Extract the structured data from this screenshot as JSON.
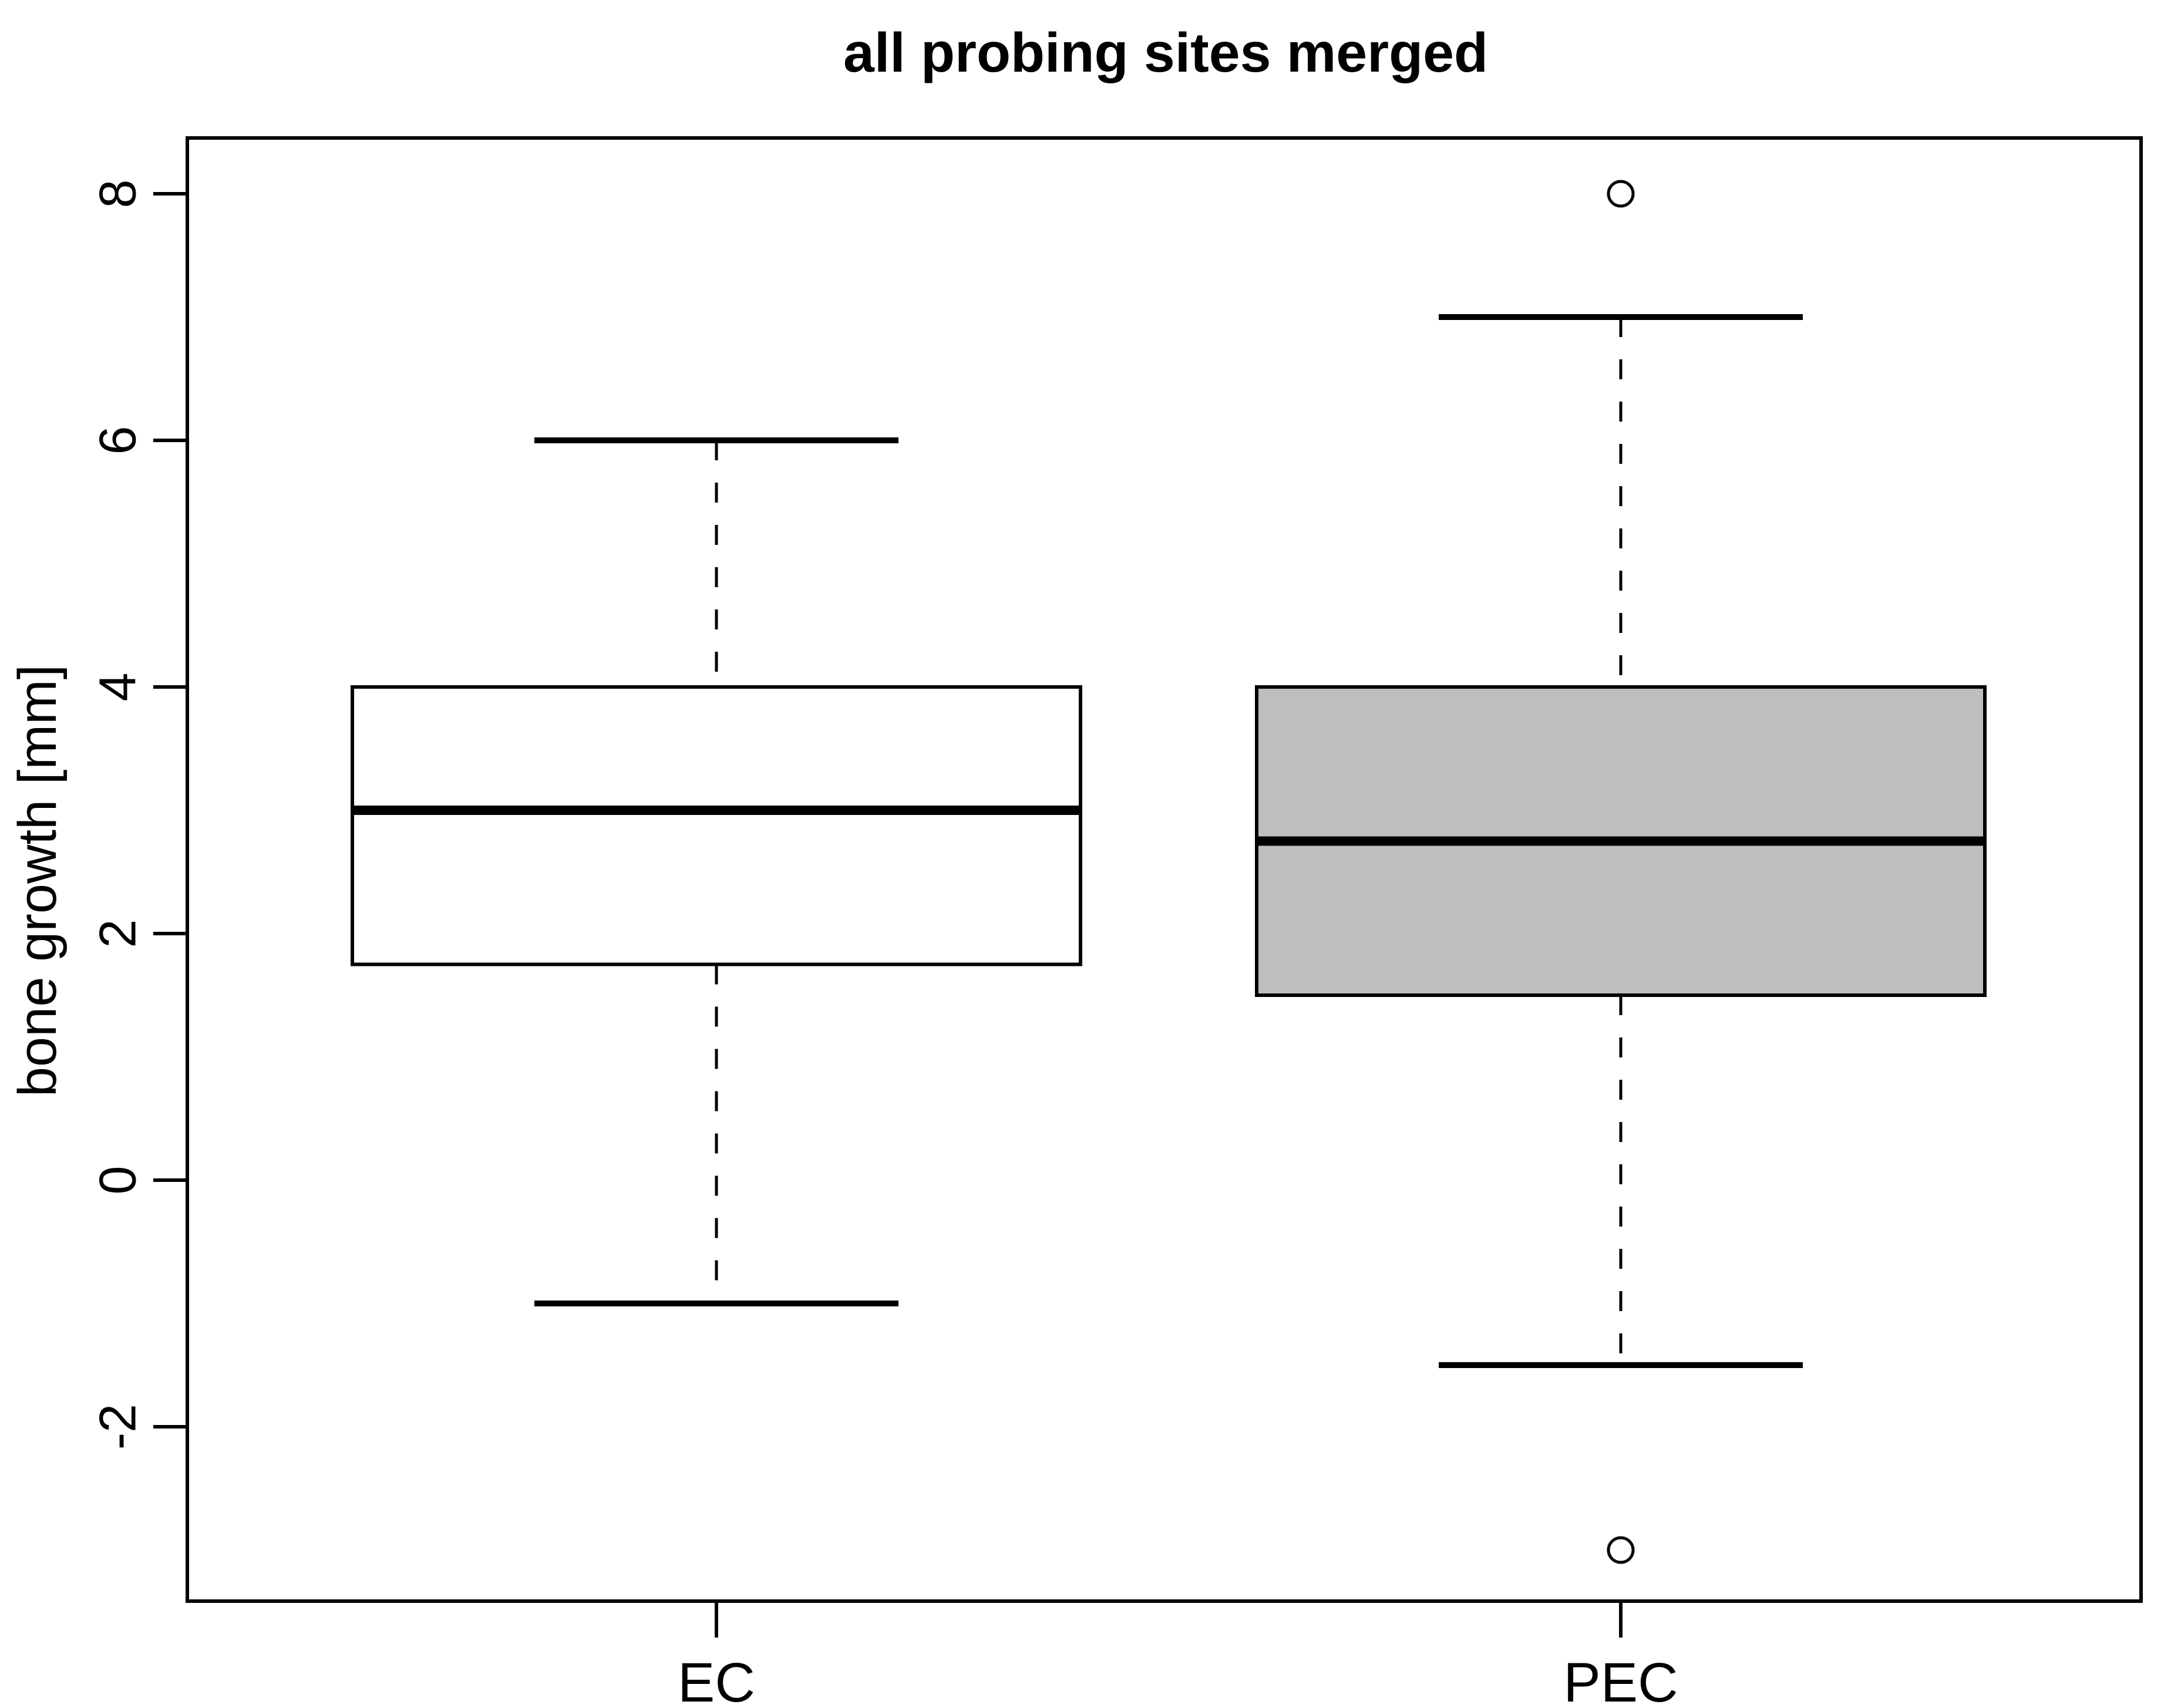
{
  "title": "all probing sites merged",
  "y_axis": {
    "label": "bone growth [mm]",
    "tick_labels": [
      "-2",
      "0",
      "2",
      "4",
      "6",
      "8"
    ]
  },
  "x_axis": {
    "categories": [
      "EC",
      "PEC"
    ]
  },
  "chart_data": {
    "type": "boxplot",
    "title": "all probing sites merged",
    "xlabel": "",
    "ylabel": "bone growth [mm]",
    "categories": [
      "EC",
      "PEC"
    ],
    "y_ticks": [
      -2,
      0,
      2,
      4,
      6,
      8
    ],
    "ylim": [
      -3.5,
      8.45
    ],
    "grid": "off",
    "orientation": "vertical",
    "series": [
      {
        "name": "EC",
        "lower_whisker": -1,
        "q1": 1.75,
        "median": 3,
        "q3": 4,
        "upper_whisker": 6,
        "outliers": [],
        "fill": "#FFFFFF"
      },
      {
        "name": "PEC",
        "lower_whisker": -1.5,
        "q1": 1.5,
        "median": 2.75,
        "q3": 4,
        "upper_whisker": 7,
        "outliers": [
          8,
          -3
        ],
        "fill": "#BEBEBE"
      }
    ],
    "colors": {
      "box_border": "#000000",
      "median_line": "#000000",
      "whisker_line": "#000000",
      "outlier_stroke": "#000000",
      "plot_border": "#000000",
      "background": "#FFFFFF"
    }
  }
}
